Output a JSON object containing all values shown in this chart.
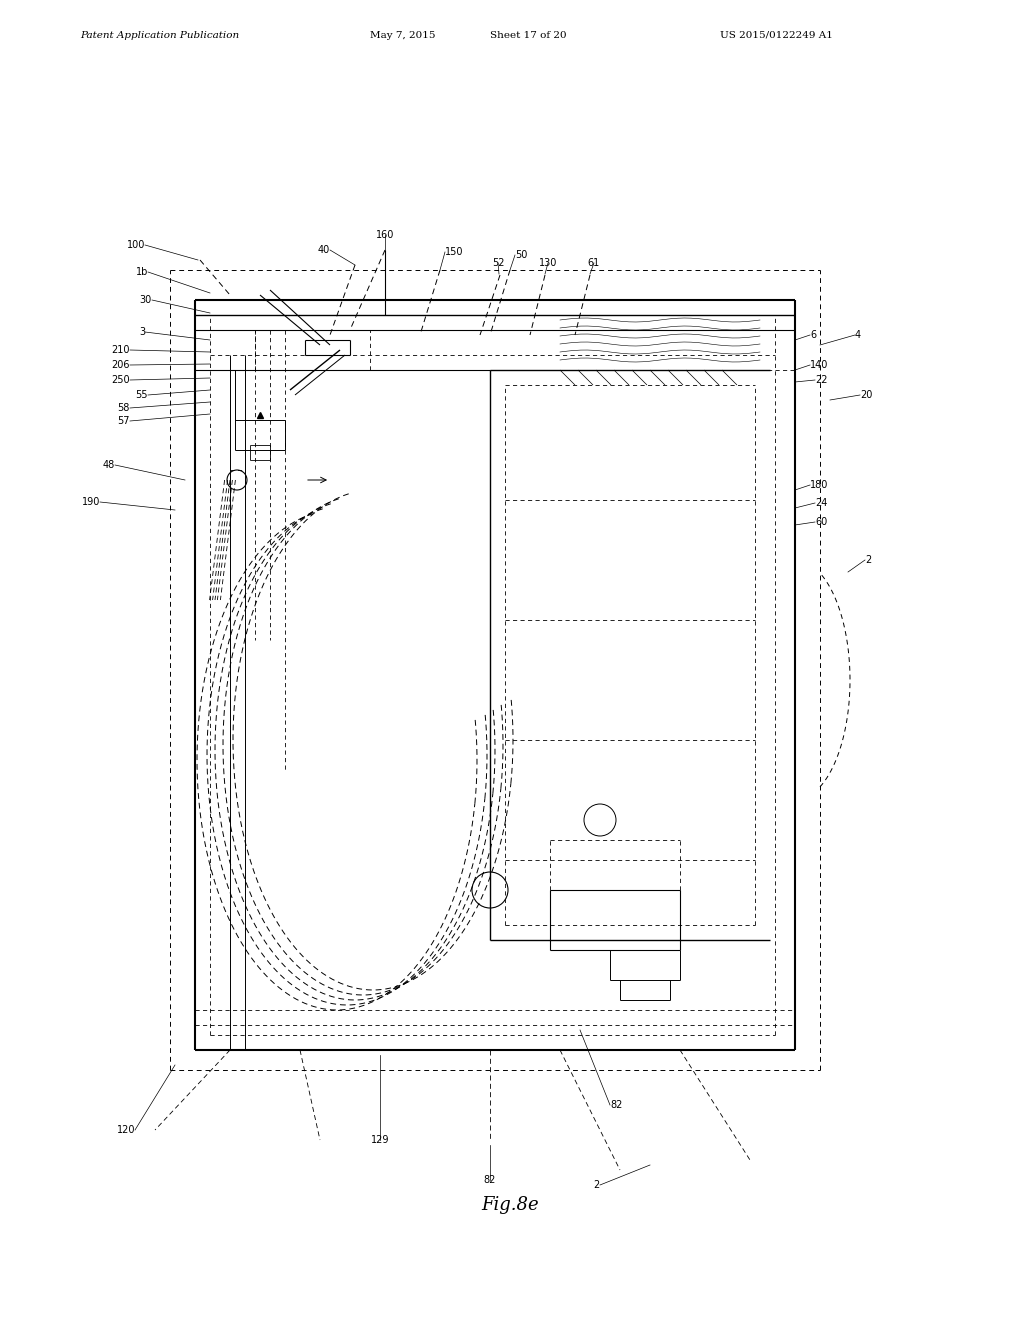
{
  "title_left": "Patent Application Publication",
  "title_mid": "May 7, 2015",
  "title_sheet": "Sheet 17 of 20",
  "title_right": "US 2015/0122249 A1",
  "fig_label": "Fig.8e",
  "bg": "#ffffff",
  "lc": "#000000"
}
